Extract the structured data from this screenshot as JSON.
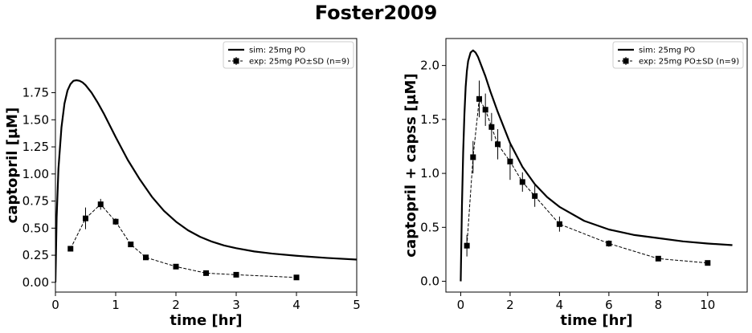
{
  "figure": {
    "suptitle": "Foster2009"
  },
  "chart_data": [
    {
      "type": "line",
      "xlabel": "time [hr]",
      "ylabel": "captopril [µM]",
      "xlim": [
        0,
        5
      ],
      "ylim": [
        -0.09,
        2.25
      ],
      "xticks": [
        "0",
        "1",
        "2",
        "3",
        "4",
        "5"
      ],
      "xtick_values": [
        0,
        1,
        2,
        3,
        4,
        5
      ],
      "yticks": [
        "0.00",
        "0.25",
        "0.50",
        "0.75",
        "1.00",
        "1.25",
        "1.50",
        "1.75"
      ],
      "ytick_values": [
        0,
        0.25,
        0.5,
        0.75,
        1.0,
        1.25,
        1.5,
        1.75
      ],
      "legend_position": "top-right",
      "grid": false,
      "series": [
        {
          "name": "sim: 25mg PO",
          "kind": "sim",
          "color": "#000000",
          "x": [
            0,
            0.02,
            0.05,
            0.1,
            0.15,
            0.2,
            0.25,
            0.3,
            0.35,
            0.4,
            0.45,
            0.5,
            0.6,
            0.7,
            0.8,
            0.9,
            1.0,
            1.2,
            1.4,
            1.6,
            1.8,
            2.0,
            2.2,
            2.4,
            2.6,
            2.8,
            3.0,
            3.3,
            3.6,
            4.0,
            4.5,
            5.0
          ],
          "y": [
            0.0,
            0.6,
            1.05,
            1.43,
            1.65,
            1.77,
            1.83,
            1.86,
            1.865,
            1.86,
            1.845,
            1.82,
            1.75,
            1.66,
            1.56,
            1.45,
            1.34,
            1.13,
            0.95,
            0.79,
            0.66,
            0.56,
            0.48,
            0.42,
            0.375,
            0.34,
            0.315,
            0.285,
            0.265,
            0.245,
            0.225,
            0.21
          ]
        },
        {
          "name": "exp: 25mg PO±SD (n=9)",
          "kind": "exp",
          "color": "#000000",
          "x": [
            0.25,
            0.5,
            0.75,
            1.0,
            1.25,
            1.5,
            2.0,
            2.5,
            3.0,
            4.0
          ],
          "y": [
            0.31,
            0.59,
            0.72,
            0.56,
            0.35,
            0.23,
            0.145,
            0.085,
            0.07,
            0.045
          ],
          "sd": [
            0.02,
            0.1,
            0.05,
            0.03,
            0.02,
            0.02,
            0.01,
            0.01,
            0.01,
            0.005
          ]
        }
      ]
    },
    {
      "type": "line",
      "xlabel": "time [hr]",
      "ylabel": "captopril + capss [µM]",
      "xlim": [
        -0.6,
        11.6
      ],
      "ylim": [
        -0.1,
        2.25
      ],
      "xticks": [
        "0",
        "2",
        "4",
        "6",
        "8",
        "10"
      ],
      "xtick_values": [
        0,
        2,
        4,
        6,
        8,
        10
      ],
      "yticks": [
        "0.0",
        "0.5",
        "1.0",
        "1.5",
        "2.0"
      ],
      "ytick_values": [
        0,
        0.5,
        1.0,
        1.5,
        2.0
      ],
      "legend_position": "top-right",
      "grid": false,
      "series": [
        {
          "name": "sim: 25mg PO",
          "kind": "sim",
          "color": "#000000",
          "x": [
            0,
            0.05,
            0.1,
            0.15,
            0.2,
            0.25,
            0.3,
            0.4,
            0.5,
            0.6,
            0.7,
            0.8,
            1.0,
            1.2,
            1.5,
            2.0,
            2.5,
            3.0,
            3.5,
            4.0,
            5.0,
            6.0,
            7.0,
            8.0,
            9.0,
            10.0,
            11.0
          ],
          "y": [
            0.0,
            0.7,
            1.2,
            1.55,
            1.8,
            1.95,
            2.04,
            2.12,
            2.14,
            2.12,
            2.08,
            2.02,
            1.9,
            1.76,
            1.57,
            1.28,
            1.06,
            0.9,
            0.78,
            0.69,
            0.56,
            0.48,
            0.43,
            0.4,
            0.37,
            0.35,
            0.335
          ]
        },
        {
          "name": "exp: 25mg PO±SD (n=9)",
          "kind": "exp",
          "color": "#000000",
          "x": [
            0.25,
            0.5,
            0.75,
            1.0,
            1.25,
            1.5,
            2.0,
            2.5,
            3.0,
            4.0,
            6.0,
            8.0,
            10.0
          ],
          "y": [
            0.33,
            1.15,
            1.69,
            1.59,
            1.43,
            1.27,
            1.11,
            0.92,
            0.79,
            0.53,
            0.35,
            0.21,
            0.17
          ],
          "sd": [
            0.1,
            0.15,
            0.17,
            0.15,
            0.13,
            0.14,
            0.17,
            0.09,
            0.1,
            0.07,
            0.03,
            0.02,
            0.02
          ]
        }
      ]
    }
  ]
}
